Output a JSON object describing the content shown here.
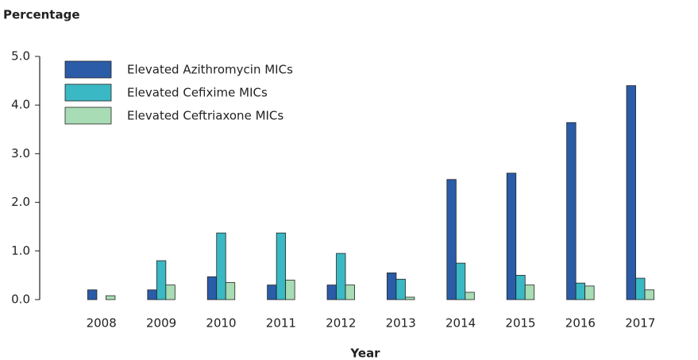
{
  "chart_data": {
    "type": "bar",
    "title": "Percentage",
    "x_label": "Year",
    "categories": [
      "2008",
      "2009",
      "2010",
      "2011",
      "2012",
      "2013",
      "2014",
      "2015",
      "2016",
      "2017"
    ],
    "series": [
      {
        "name": "Elevated Azithromycin MICs",
        "color": "#2b5ca8",
        "values": [
          0.2,
          0.2,
          0.47,
          0.3,
          0.3,
          0.55,
          2.47,
          2.6,
          3.64,
          4.4
        ]
      },
      {
        "name": "Elevated Cefixime MICs",
        "color": "#3ab8c4",
        "values": [
          0,
          0.8,
          1.37,
          1.37,
          0.95,
          0.42,
          0.75,
          0.5,
          0.34,
          0.44
        ]
      },
      {
        "name": "Elevated Ceftriaxone MICs",
        "color": "#a8dcb4",
        "values": [
          0.08,
          0.3,
          0.35,
          0.4,
          0.3,
          0.05,
          0.15,
          0.3,
          0.28,
          0.2
        ]
      }
    ],
    "ylim": [
      0,
      5
    ],
    "yticks": [
      {
        "value": 0,
        "label": "0.0"
      },
      {
        "value": 1,
        "label": "1.0"
      },
      {
        "value": 2,
        "label": "2.0"
      },
      {
        "value": 3,
        "label": "3.0"
      },
      {
        "value": 4,
        "label": "4.0"
      },
      {
        "value": 5,
        "label": "5.0"
      }
    ],
    "legend": "upper left"
  }
}
